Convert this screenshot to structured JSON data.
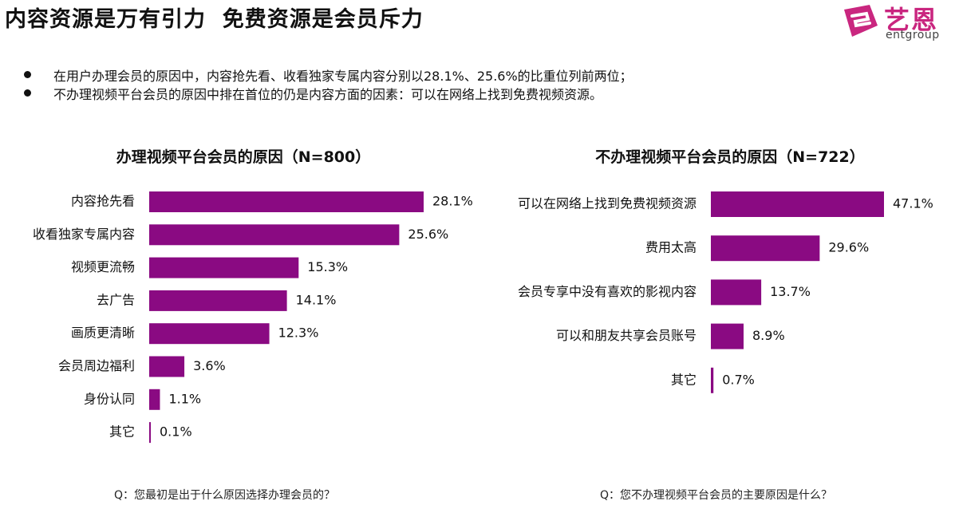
{
  "title": "内容资源是万有引力  免费资源是会员斥力",
  "logo": {
    "text": "艺恩",
    "sub": "entgroup"
  },
  "bullets": [
    "在用户办理会员的原因中，内容抢先看、收看独家专属内容分别以28.1%、25.6%的比重位列前两位；",
    "不办理视频平台会员的原因中排在首位的仍是内容方面的因素：可以在网络上找到免费视频资源。"
  ],
  "colors": {
    "bar": "#8a0a82",
    "logo": "#c9267f"
  },
  "questions": {
    "left": "Q：您最初是出于什么原因选择办理会员的？",
    "right": "Q：您不办理视频平台会员的主要原因是什么？"
  },
  "chart_data": [
    {
      "type": "bar",
      "orientation": "horizontal",
      "title": "办理视频平台会员的原因（N=800）",
      "categories": [
        "内容抢先看",
        "收看独家专属内容",
        "视频更流畅",
        "去广告",
        "画质更清晰",
        "会员周边福利",
        "身份认同",
        "其它"
      ],
      "values": [
        28.1,
        25.6,
        15.3,
        14.1,
        12.3,
        3.6,
        1.1,
        0.1
      ],
      "labels": [
        "28.1%",
        "25.6%",
        "15.3%",
        "14.1%",
        "12.3%",
        "3.6%",
        "1.1%",
        "0.1%"
      ],
      "unit": "%"
    },
    {
      "type": "bar",
      "orientation": "horizontal",
      "title": "不办理视频平台会员的原因（N=722）",
      "categories": [
        "可以在网络上找到免费视频资源",
        "费用太高",
        "会员专享中没有喜欢的影视内容",
        "可以和朋友共享会员账号",
        "其它"
      ],
      "values": [
        47.1,
        29.6,
        13.7,
        8.9,
        0.7
      ],
      "labels": [
        "47.1%",
        "29.6%",
        "13.7%",
        "8.9%",
        "0.7%"
      ],
      "unit": "%"
    }
  ]
}
